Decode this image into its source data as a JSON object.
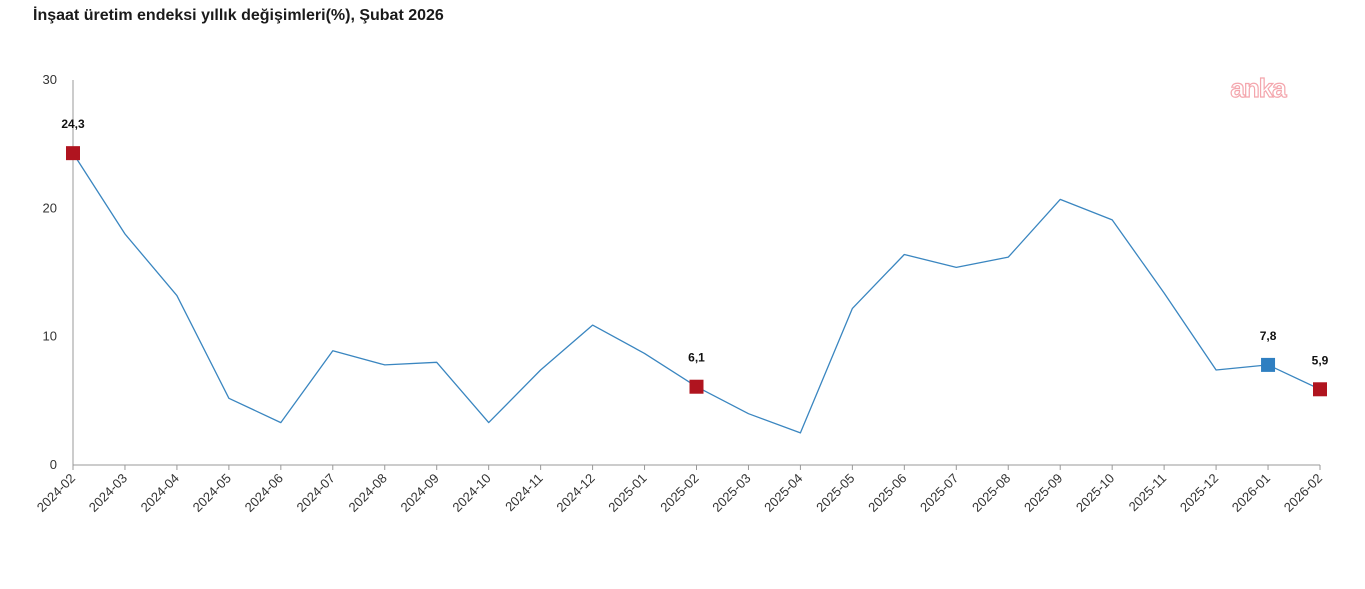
{
  "chart_data": {
    "type": "line",
    "title": "İnşaat üretim endeksi yıllık değişimleri(%), Şubat 2026",
    "watermark": "anka",
    "x": [
      "2024-02",
      "2024-03",
      "2024-04",
      "2024-05",
      "2024-06",
      "2024-07",
      "2024-08",
      "2024-09",
      "2024-10",
      "2024-11",
      "2024-12",
      "2025-01",
      "2025-02",
      "2025-03",
      "2025-04",
      "2025-05",
      "2025-06",
      "2025-07",
      "2025-08",
      "2025-09",
      "2025-10",
      "2025-11",
      "2025-12",
      "2026-01",
      "2026-02"
    ],
    "series": [
      {
        "values": [
          24.3,
          18.0,
          13.2,
          5.2,
          3.3,
          8.9,
          7.8,
          8.0,
          3.3,
          7.4,
          10.9,
          8.7,
          6.1,
          4.0,
          2.5,
          12.2,
          16.4,
          15.4,
          16.2,
          20.7,
          19.1,
          13.4,
          7.4,
          7.8,
          5.9
        ]
      }
    ],
    "highlights": [
      {
        "index": 0,
        "label": "24,3",
        "color": "#b0141f"
      },
      {
        "index": 12,
        "label": "6,1",
        "color": "#b0141f"
      },
      {
        "index": 23,
        "label": "7,8",
        "color": "#2f7fc1"
      },
      {
        "index": 24,
        "label": "5,9",
        "color": "#b0141f"
      }
    ],
    "yticks": [
      0,
      10,
      20,
      30
    ],
    "ytick_labels": [
      "0",
      "10",
      "20",
      "30"
    ],
    "ylim": [
      0,
      30
    ],
    "line_color": "#3a86c0",
    "axis_color": "#999999",
    "grid": false,
    "legend": "none",
    "xlabel": "",
    "ylabel": ""
  }
}
